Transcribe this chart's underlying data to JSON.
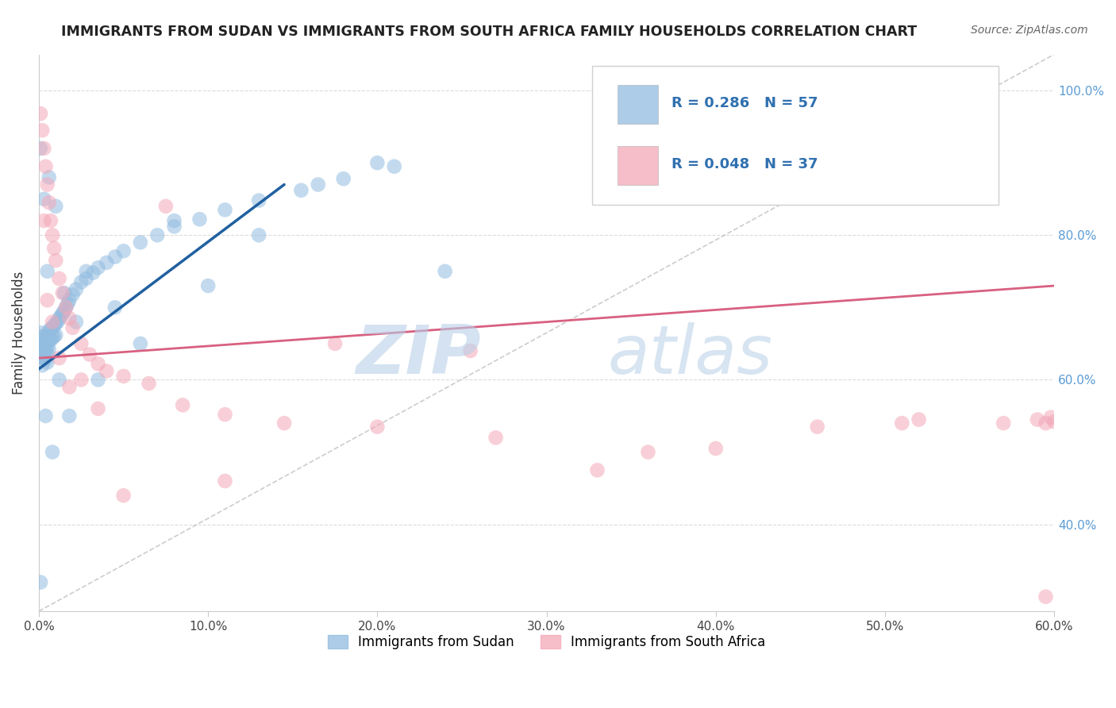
{
  "title": "IMMIGRANTS FROM SUDAN VS IMMIGRANTS FROM SOUTH AFRICA FAMILY HOUSEHOLDS CORRELATION CHART",
  "source": "Source: ZipAtlas.com",
  "ylabel": "Family Households",
  "xlim": [
    0.0,
    0.6
  ],
  "ylim": [
    0.28,
    1.05
  ],
  "blue_scatter_x": [
    0.001,
    0.001,
    0.001,
    0.001,
    0.002,
    0.002,
    0.002,
    0.002,
    0.003,
    0.003,
    0.003,
    0.003,
    0.004,
    0.004,
    0.004,
    0.004,
    0.005,
    0.005,
    0.005,
    0.005,
    0.006,
    0.006,
    0.006,
    0.007,
    0.007,
    0.008,
    0.008,
    0.009,
    0.009,
    0.01,
    0.01,
    0.011,
    0.012,
    0.013,
    0.014,
    0.015,
    0.016,
    0.017,
    0.018,
    0.02,
    0.022,
    0.025,
    0.028,
    0.032,
    0.035,
    0.04,
    0.045,
    0.05,
    0.06,
    0.07,
    0.08,
    0.095,
    0.11,
    0.13,
    0.155,
    0.18,
    0.21
  ],
  "blue_scatter_y": [
    0.665,
    0.655,
    0.648,
    0.638,
    0.66,
    0.65,
    0.643,
    0.635,
    0.66,
    0.65,
    0.643,
    0.63,
    0.658,
    0.648,
    0.64,
    0.628,
    0.656,
    0.646,
    0.636,
    0.624,
    0.668,
    0.655,
    0.642,
    0.67,
    0.655,
    0.672,
    0.658,
    0.675,
    0.66,
    0.678,
    0.662,
    0.68,
    0.685,
    0.688,
    0.692,
    0.695,
    0.7,
    0.705,
    0.71,
    0.718,
    0.725,
    0.735,
    0.74,
    0.748,
    0.755,
    0.762,
    0.77,
    0.778,
    0.79,
    0.8,
    0.812,
    0.822,
    0.835,
    0.848,
    0.862,
    0.878,
    0.895
  ],
  "blue_extra_x": [
    0.001,
    0.001,
    0.002,
    0.003,
    0.004,
    0.005,
    0.006,
    0.008,
    0.01,
    0.012,
    0.015,
    0.018,
    0.022,
    0.028,
    0.035,
    0.045,
    0.06,
    0.08,
    0.1,
    0.13,
    0.165,
    0.2,
    0.24
  ],
  "blue_extra_y": [
    0.32,
    0.92,
    0.62,
    0.85,
    0.55,
    0.75,
    0.88,
    0.5,
    0.84,
    0.6,
    0.72,
    0.55,
    0.68,
    0.75,
    0.6,
    0.7,
    0.65,
    0.82,
    0.73,
    0.8,
    0.87,
    0.9,
    0.75
  ],
  "pink_scatter_x": [
    0.001,
    0.002,
    0.003,
    0.004,
    0.005,
    0.006,
    0.007,
    0.008,
    0.009,
    0.01,
    0.012,
    0.014,
    0.016,
    0.018,
    0.02,
    0.025,
    0.03,
    0.035,
    0.04,
    0.05,
    0.065,
    0.085,
    0.11,
    0.145,
    0.2,
    0.27,
    0.33,
    0.4,
    0.46,
    0.52,
    0.57,
    0.59,
    0.595,
    0.598,
    0.6
  ],
  "pink_scatter_y": [
    0.968,
    0.945,
    0.92,
    0.895,
    0.87,
    0.845,
    0.82,
    0.8,
    0.782,
    0.765,
    0.74,
    0.72,
    0.7,
    0.685,
    0.672,
    0.65,
    0.635,
    0.622,
    0.612,
    0.605,
    0.595,
    0.565,
    0.552,
    0.54,
    0.535,
    0.52,
    0.475,
    0.505,
    0.535,
    0.545,
    0.54,
    0.545,
    0.54,
    0.548,
    0.542
  ],
  "pink_extra_x": [
    0.003,
    0.005,
    0.008,
    0.012,
    0.018,
    0.025,
    0.035,
    0.05,
    0.075,
    0.11,
    0.175,
    0.255,
    0.36,
    0.51,
    0.595
  ],
  "pink_extra_y": [
    0.82,
    0.71,
    0.68,
    0.63,
    0.59,
    0.6,
    0.56,
    0.44,
    0.84,
    0.46,
    0.65,
    0.64,
    0.5,
    0.54,
    0.3
  ],
  "blue_line_x": [
    0.0,
    0.145
  ],
  "blue_line_y": [
    0.615,
    0.87
  ],
  "pink_line_x": [
    0.0,
    0.6
  ],
  "pink_line_y": [
    0.63,
    0.73
  ],
  "diag_line_x": [
    0.0,
    0.6
  ],
  "diag_line_y": [
    0.28,
    1.05
  ],
  "title_color": "#222222",
  "source_color": "#666666",
  "blue_color": "#92bce0",
  "pink_color": "#f4a8b8",
  "blue_line_color": "#2060a0",
  "pink_line_color": "#d86080",
  "diag_line_color": "#c0c0c0",
  "grid_color": "#d8d8d8",
  "bg_color": "#ffffff",
  "ytick_color": "#5b9bd5",
  "legend_blue_text": "R = 0.286   N = 57",
  "legend_pink_text": "R = 0.048   N = 37",
  "watermark_zip": "ZIP",
  "watermark_atlas": "atlas",
  "bottom_legend_blue": "Immigrants from Sudan",
  "bottom_legend_pink": "Immigrants from South Africa"
}
